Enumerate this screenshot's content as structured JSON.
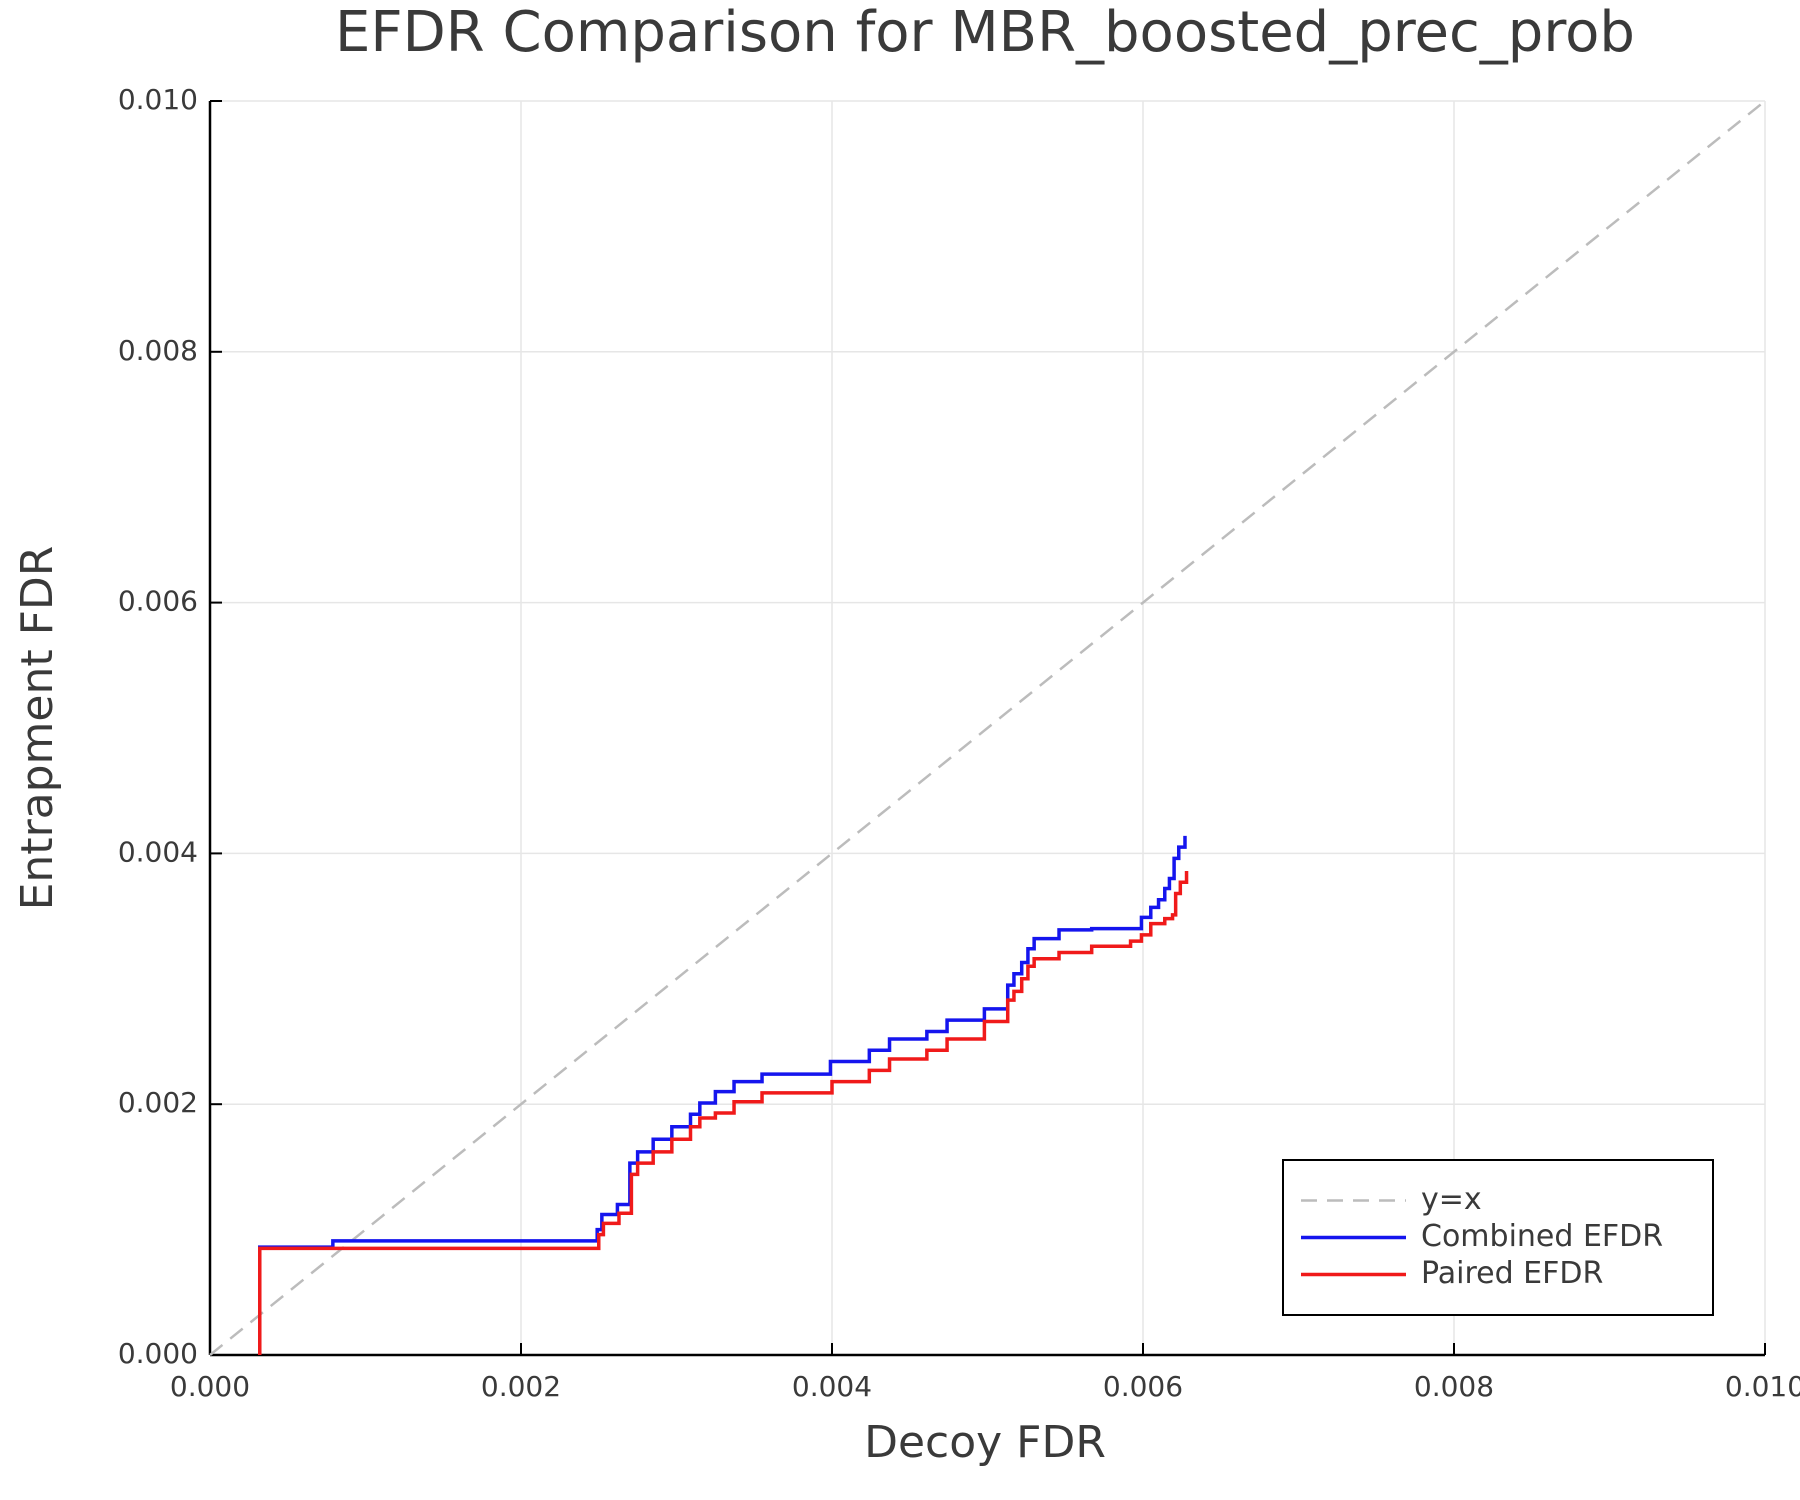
{
  "chart_data": {
    "type": "line",
    "title": "EFDR Comparison for MBR_boosted_prec_prob",
    "x_label": "Decoy FDR",
    "y_label": "Entrapment FDR",
    "xlim": [
      0,
      0.01
    ],
    "ylim": [
      0,
      0.01
    ],
    "xticks": [
      {
        "value": 0,
        "label": "0.000"
      },
      {
        "value": 0.002,
        "label": "0.002"
      },
      {
        "value": 0.004,
        "label": "0.004"
      },
      {
        "value": 0.006,
        "label": "0.006"
      },
      {
        "value": 0.008,
        "label": "0.008"
      },
      {
        "value": 0.01,
        "label": "0.010"
      }
    ],
    "yticks": [
      {
        "value": 0,
        "label": "0.000"
      },
      {
        "value": 0.002,
        "label": "0.002"
      },
      {
        "value": 0.004,
        "label": "0.004"
      },
      {
        "value": 0.006,
        "label": "0.006"
      },
      {
        "value": 0.008,
        "label": "0.008"
      },
      {
        "value": 0.01,
        "label": "0.010"
      }
    ],
    "grid": true,
    "legend": "lower right",
    "series": [
      {
        "name": "y=x",
        "color": "#bcbcbc",
        "style": "dashed",
        "x": [
          0,
          0.01
        ],
        "values": [
          0,
          0.01
        ]
      },
      {
        "name": "Combined EFDR",
        "color": "#1515ee",
        "style": "solid",
        "x": [
          0.00032,
          0.00032,
          0.00079,
          0.00079,
          0.00249,
          0.00249,
          0.00252,
          0.00252,
          0.00262,
          0.00262,
          0.0027,
          0.0027,
          0.00275,
          0.00275,
          0.00285,
          0.00285,
          0.00297,
          0.00297,
          0.00309,
          0.00309,
          0.00315,
          0.00315,
          0.00325,
          0.00325,
          0.00337,
          0.00337,
          0.00355,
          0.00355,
          0.00399,
          0.00399,
          0.00424,
          0.00424,
          0.00437,
          0.00437,
          0.00461,
          0.00461,
          0.00474,
          0.00474,
          0.00498,
          0.00498,
          0.00513,
          0.00513,
          0.00517,
          0.00517,
          0.00522,
          0.00522,
          0.00526,
          0.00526,
          0.0053,
          0.0053,
          0.00546,
          0.00546,
          0.00567,
          0.00567,
          0.00599,
          0.00599,
          0.00605,
          0.00605,
          0.0061,
          0.0061,
          0.00614,
          0.00614,
          0.00617,
          0.00617,
          0.0062,
          0.0062,
          0.00623,
          0.00623,
          0.00627,
          0.00627
        ],
        "values": [
          0,
          0.00086,
          0.00086,
          0.00091,
          0.00091,
          0.001,
          0.001,
          0.00112,
          0.00112,
          0.0012,
          0.0012,
          0.00153,
          0.00153,
          0.00162,
          0.00162,
          0.00172,
          0.00172,
          0.00182,
          0.00182,
          0.00192,
          0.00192,
          0.00201,
          0.00201,
          0.0021,
          0.0021,
          0.00218,
          0.00218,
          0.00224,
          0.00224,
          0.00234,
          0.00234,
          0.00243,
          0.00243,
          0.00252,
          0.00252,
          0.00258,
          0.00258,
          0.00267,
          0.00267,
          0.00276,
          0.00276,
          0.00295,
          0.00295,
          0.00304,
          0.00304,
          0.00313,
          0.00313,
          0.00324,
          0.00324,
          0.00332,
          0.00332,
          0.00339,
          0.00339,
          0.0034,
          0.0034,
          0.00349,
          0.00349,
          0.00357,
          0.00357,
          0.00363,
          0.00363,
          0.00372,
          0.00372,
          0.0038,
          0.0038,
          0.00396,
          0.00396,
          0.00405,
          0.00405,
          0.00414
        ]
      },
      {
        "name": "Paired EFDR",
        "color": "#f01a1a",
        "style": "solid",
        "x": [
          0.00032,
          0.00032,
          0.0025,
          0.0025,
          0.00253,
          0.00253,
          0.00263,
          0.00263,
          0.00271,
          0.00271,
          0.00275,
          0.00275,
          0.00285,
          0.00285,
          0.00297,
          0.00297,
          0.00309,
          0.00309,
          0.00315,
          0.00315,
          0.00325,
          0.00325,
          0.00337,
          0.00337,
          0.00355,
          0.00355,
          0.004,
          0.004,
          0.00424,
          0.00424,
          0.00437,
          0.00437,
          0.00461,
          0.00461,
          0.00474,
          0.00474,
          0.00498,
          0.00498,
          0.00513,
          0.00513,
          0.00517,
          0.00517,
          0.00522,
          0.00522,
          0.00526,
          0.00526,
          0.0053,
          0.0053,
          0.00546,
          0.00546,
          0.00567,
          0.00567,
          0.00592,
          0.00592,
          0.00599,
          0.00599,
          0.00605,
          0.00605,
          0.00614,
          0.00614,
          0.00619,
          0.00619,
          0.00621,
          0.00621,
          0.00624,
          0.00624,
          0.00628,
          0.00628
        ],
        "values": [
          0,
          0.00085,
          0.00085,
          0.00096,
          0.00096,
          0.00105,
          0.00105,
          0.00113,
          0.00113,
          0.00144,
          0.00144,
          0.00153,
          0.00153,
          0.00162,
          0.00162,
          0.00172,
          0.00172,
          0.00182,
          0.00182,
          0.00189,
          0.00189,
          0.00193,
          0.00193,
          0.00202,
          0.00202,
          0.00209,
          0.00209,
          0.00218,
          0.00218,
          0.00227,
          0.00227,
          0.00236,
          0.00236,
          0.00243,
          0.00243,
          0.00252,
          0.00252,
          0.00266,
          0.00266,
          0.00283,
          0.00283,
          0.0029,
          0.0029,
          0.003,
          0.003,
          0.0031,
          0.0031,
          0.00316,
          0.00316,
          0.00321,
          0.00321,
          0.00326,
          0.00326,
          0.0033,
          0.0033,
          0.00335,
          0.00335,
          0.00344,
          0.00344,
          0.00348,
          0.00348,
          0.00351,
          0.00351,
          0.00368,
          0.00368,
          0.00377,
          0.00377,
          0.00386
        ]
      }
    ]
  }
}
